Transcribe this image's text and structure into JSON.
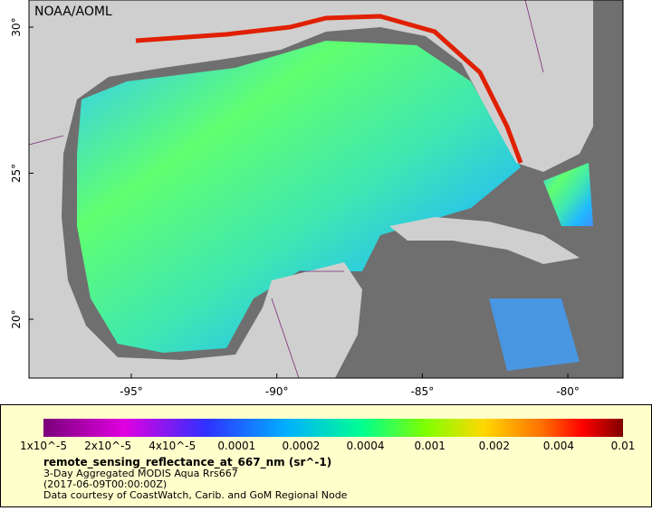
{
  "map": {
    "credit": "NOAA/AOML",
    "lat_labels": [
      "30°",
      "25°",
      "20°"
    ],
    "lon_labels": [
      "-95°",
      "-90°",
      "-85°",
      "-80°"
    ]
  },
  "legend": {
    "colorbar_labels": [
      "1x10^-5",
      "2x10^-5",
      "4x10^-5",
      "0.0001",
      "0.0002",
      "0.0004",
      "0.001",
      "0.002",
      "0.004",
      "0.01"
    ],
    "title": "remote_sensing_reflectance_at_667_nm (sr^-1)",
    "lines": [
      "3-Day Aggregated MODIS Aqua Rrs667",
      "(2017-06-09T00:00:00Z)",
      "Data courtesy of CoastWatch, Carib. and GoM Regional Node"
    ]
  }
}
